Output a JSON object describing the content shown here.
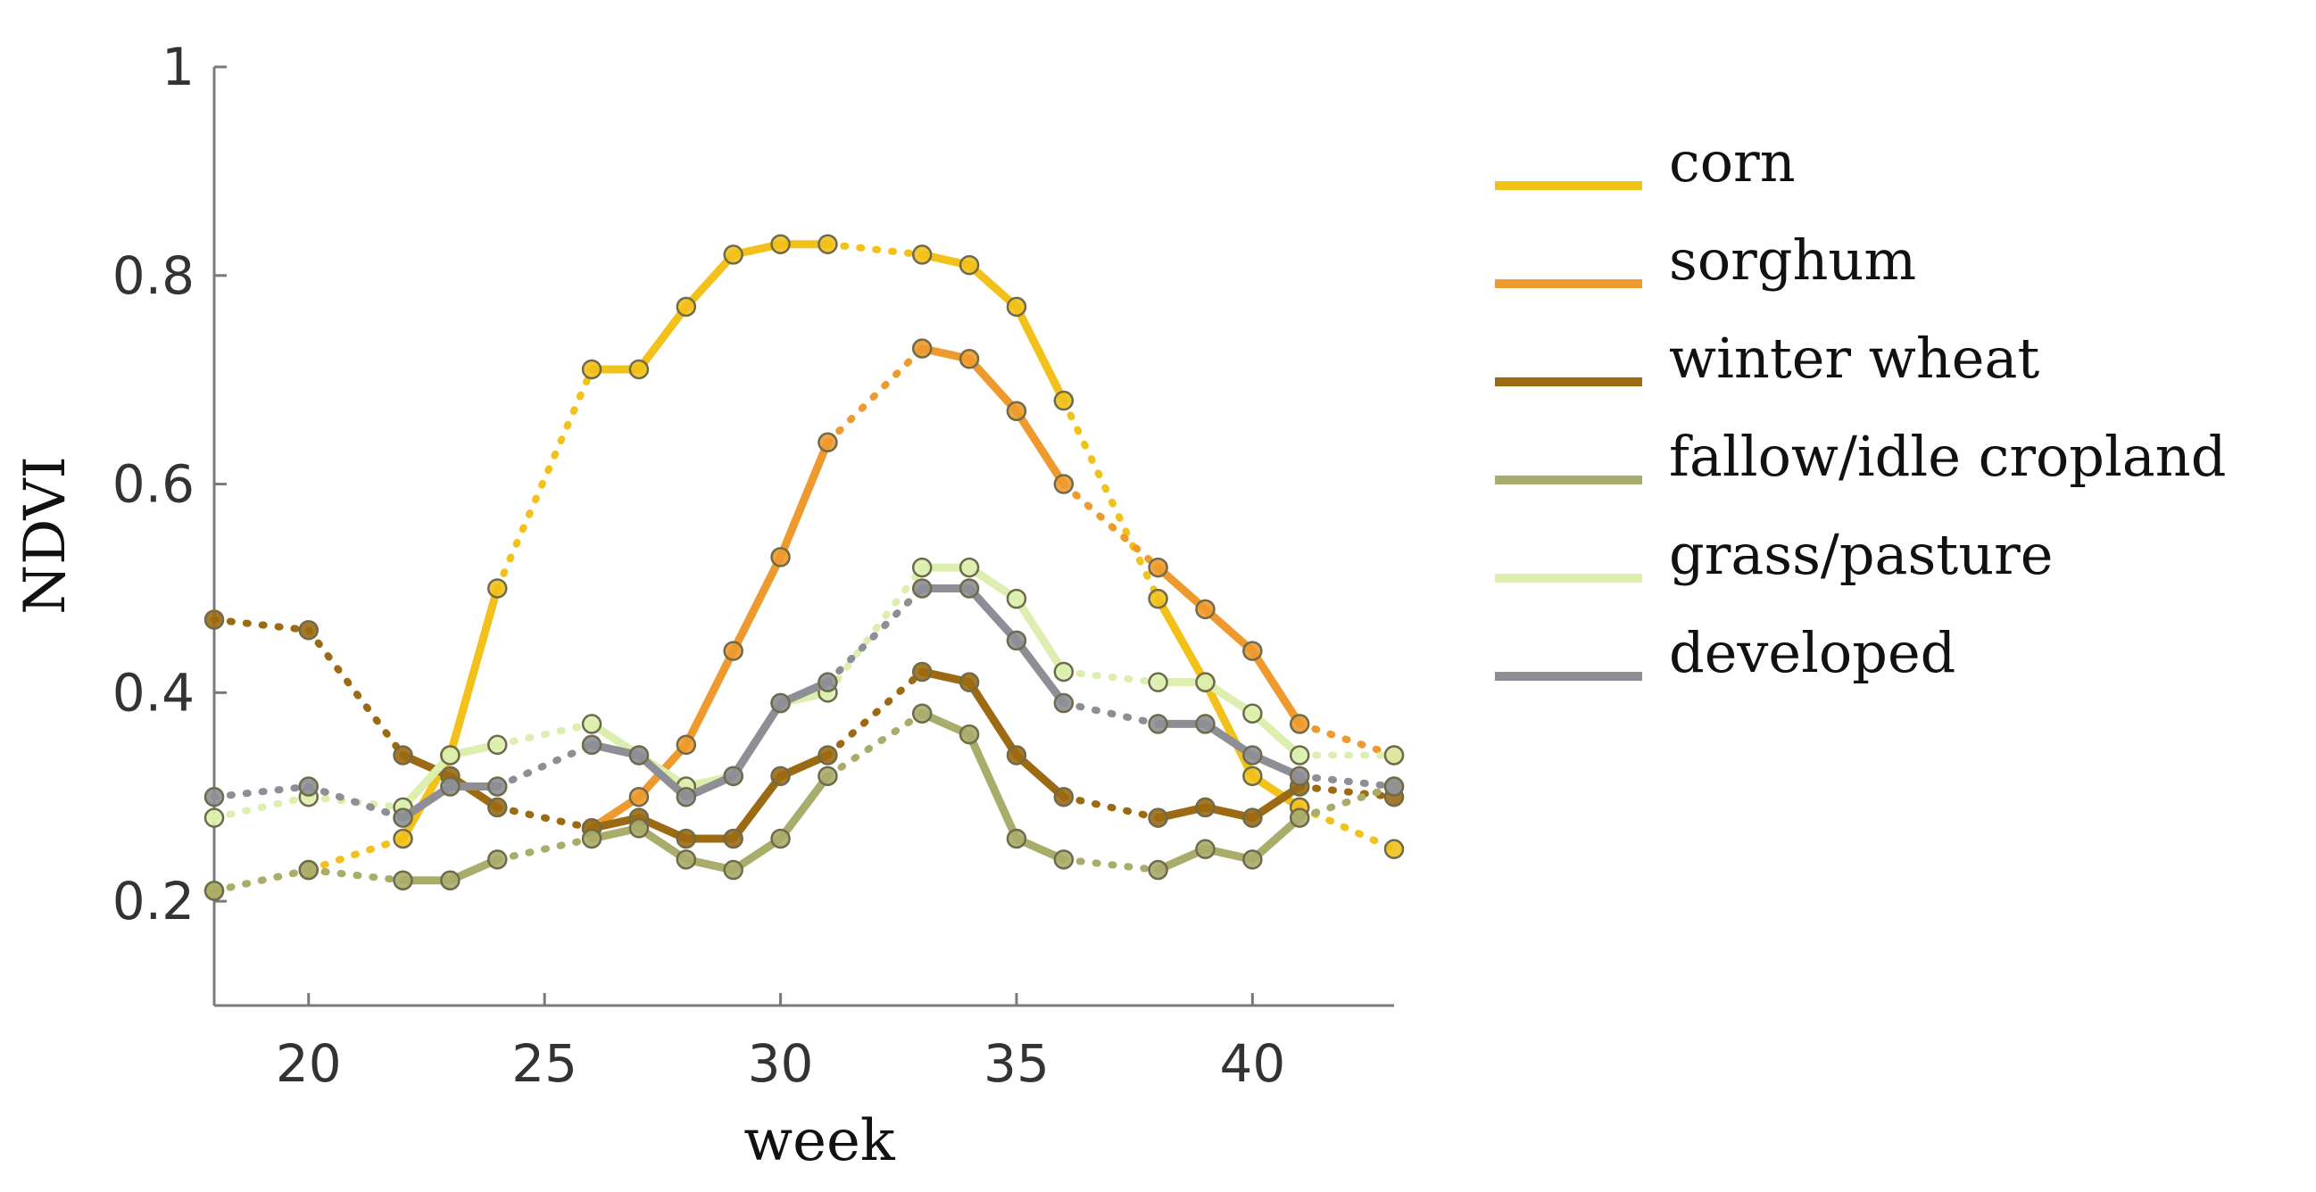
{
  "chart_data": {
    "type": "line",
    "title": "",
    "xlabel": "week",
    "ylabel": "NDVI",
    "xlim": [
      18,
      43
    ],
    "ylim": [
      0.1,
      1.0
    ],
    "xticks": [
      20,
      25,
      30,
      35,
      40
    ],
    "yticks": [
      0.2,
      0.4,
      0.6,
      0.8,
      1
    ],
    "ytick_labels": [
      "0.2",
      "0.4",
      "0.6",
      "0.8",
      "1"
    ],
    "grid": false,
    "legend_position": "right",
    "note": "solid segments connect consecutive weeks; dotted segments bridge missing weeks",
    "series": [
      {
        "name": "corn",
        "color": "#F2C11A",
        "points": [
          [
            18,
            0.21
          ],
          [
            20,
            0.23
          ],
          [
            22,
            0.26
          ],
          [
            23,
            0.34
          ],
          [
            24,
            0.5
          ],
          [
            26,
            0.71
          ],
          [
            27,
            0.71
          ],
          [
            28,
            0.77
          ],
          [
            29,
            0.82
          ],
          [
            30,
            0.83
          ],
          [
            31,
            0.83
          ],
          [
            33,
            0.82
          ],
          [
            34,
            0.81
          ],
          [
            35,
            0.77
          ],
          [
            36,
            0.68
          ],
          [
            38,
            0.49
          ],
          [
            39,
            0.41
          ],
          [
            40,
            0.32
          ],
          [
            41,
            0.29
          ],
          [
            43,
            0.25
          ]
        ]
      },
      {
        "name": "sorghum",
        "color": "#EE9A2E",
        "points": [
          [
            26,
            0.27
          ],
          [
            27,
            0.3
          ],
          [
            28,
            0.35
          ],
          [
            29,
            0.44
          ],
          [
            30,
            0.53
          ],
          [
            31,
            0.64
          ],
          [
            33,
            0.73
          ],
          [
            34,
            0.72
          ],
          [
            35,
            0.67
          ],
          [
            36,
            0.6
          ],
          [
            38,
            0.52
          ],
          [
            39,
            0.48
          ],
          [
            40,
            0.44
          ],
          [
            41,
            0.37
          ],
          [
            43,
            0.34
          ]
        ]
      },
      {
        "name": "winter wheat",
        "color": "#9C6A12",
        "points": [
          [
            18,
            0.47
          ],
          [
            20,
            0.46
          ],
          [
            22,
            0.34
          ],
          [
            23,
            0.32
          ],
          [
            24,
            0.29
          ],
          [
            26,
            0.27
          ],
          [
            27,
            0.28
          ],
          [
            28,
            0.26
          ],
          [
            29,
            0.26
          ],
          [
            30,
            0.32
          ],
          [
            31,
            0.34
          ],
          [
            33,
            0.42
          ],
          [
            34,
            0.41
          ],
          [
            35,
            0.34
          ],
          [
            36,
            0.3
          ],
          [
            38,
            0.28
          ],
          [
            39,
            0.29
          ],
          [
            40,
            0.28
          ],
          [
            41,
            0.31
          ],
          [
            43,
            0.3
          ]
        ]
      },
      {
        "name": "fallow/idle cropland",
        "color": "#A9AC6A",
        "points": [
          [
            18,
            0.21
          ],
          [
            20,
            0.23
          ],
          [
            22,
            0.22
          ],
          [
            23,
            0.22
          ],
          [
            24,
            0.24
          ],
          [
            26,
            0.26
          ],
          [
            27,
            0.27
          ],
          [
            28,
            0.24
          ],
          [
            29,
            0.23
          ],
          [
            30,
            0.26
          ],
          [
            31,
            0.32
          ],
          [
            33,
            0.38
          ],
          [
            34,
            0.36
          ],
          [
            35,
            0.26
          ],
          [
            36,
            0.24
          ],
          [
            38,
            0.23
          ],
          [
            39,
            0.25
          ],
          [
            40,
            0.24
          ],
          [
            41,
            0.28
          ],
          [
            43,
            0.31
          ]
        ]
      },
      {
        "name": "grass/pasture",
        "color": "#DCEFAE",
        "points": [
          [
            18,
            0.28
          ],
          [
            20,
            0.3
          ],
          [
            22,
            0.29
          ],
          [
            23,
            0.34
          ],
          [
            24,
            0.35
          ],
          [
            26,
            0.37
          ],
          [
            27,
            0.34
          ],
          [
            28,
            0.31
          ],
          [
            29,
            0.32
          ],
          [
            30,
            0.39
          ],
          [
            31,
            0.4
          ],
          [
            33,
            0.52
          ],
          [
            34,
            0.52
          ],
          [
            35,
            0.49
          ],
          [
            36,
            0.42
          ],
          [
            38,
            0.41
          ],
          [
            39,
            0.41
          ],
          [
            40,
            0.38
          ],
          [
            41,
            0.34
          ],
          [
            43,
            0.34
          ]
        ]
      },
      {
        "name": "developed",
        "color": "#8E8F96",
        "points": [
          [
            18,
            0.3
          ],
          [
            20,
            0.31
          ],
          [
            22,
            0.28
          ],
          [
            23,
            0.31
          ],
          [
            24,
            0.31
          ],
          [
            26,
            0.35
          ],
          [
            27,
            0.34
          ],
          [
            28,
            0.3
          ],
          [
            29,
            0.32
          ],
          [
            30,
            0.39
          ],
          [
            31,
            0.41
          ],
          [
            33,
            0.5
          ],
          [
            34,
            0.5
          ],
          [
            35,
            0.45
          ],
          [
            36,
            0.39
          ],
          [
            38,
            0.37
          ],
          [
            39,
            0.37
          ],
          [
            40,
            0.34
          ],
          [
            41,
            0.32
          ],
          [
            43,
            0.31
          ]
        ]
      }
    ]
  }
}
